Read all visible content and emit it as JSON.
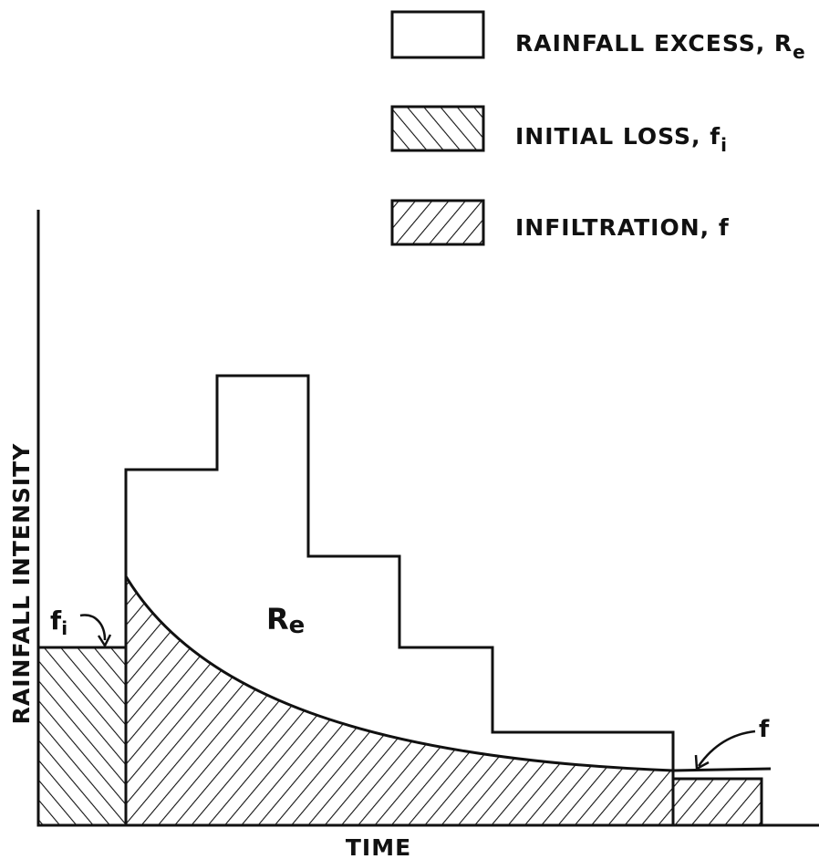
{
  "legend": [
    {
      "label": "RAINFALL EXCESS, R",
      "subscript": "e"
    },
    {
      "label": "INITIAL LOSS, f",
      "subscript": "i"
    },
    {
      "label": "INFILTRATION, f"
    }
  ],
  "axes": {
    "y_label": "RAINFALL INTENSITY",
    "x_label": "TIME"
  },
  "annotations": {
    "initial_loss": {
      "text": "f",
      "subscript": "i"
    },
    "rainfall_excess": {
      "text": "R",
      "subscript": "e"
    },
    "infiltration": {
      "text": "f"
    }
  }
}
